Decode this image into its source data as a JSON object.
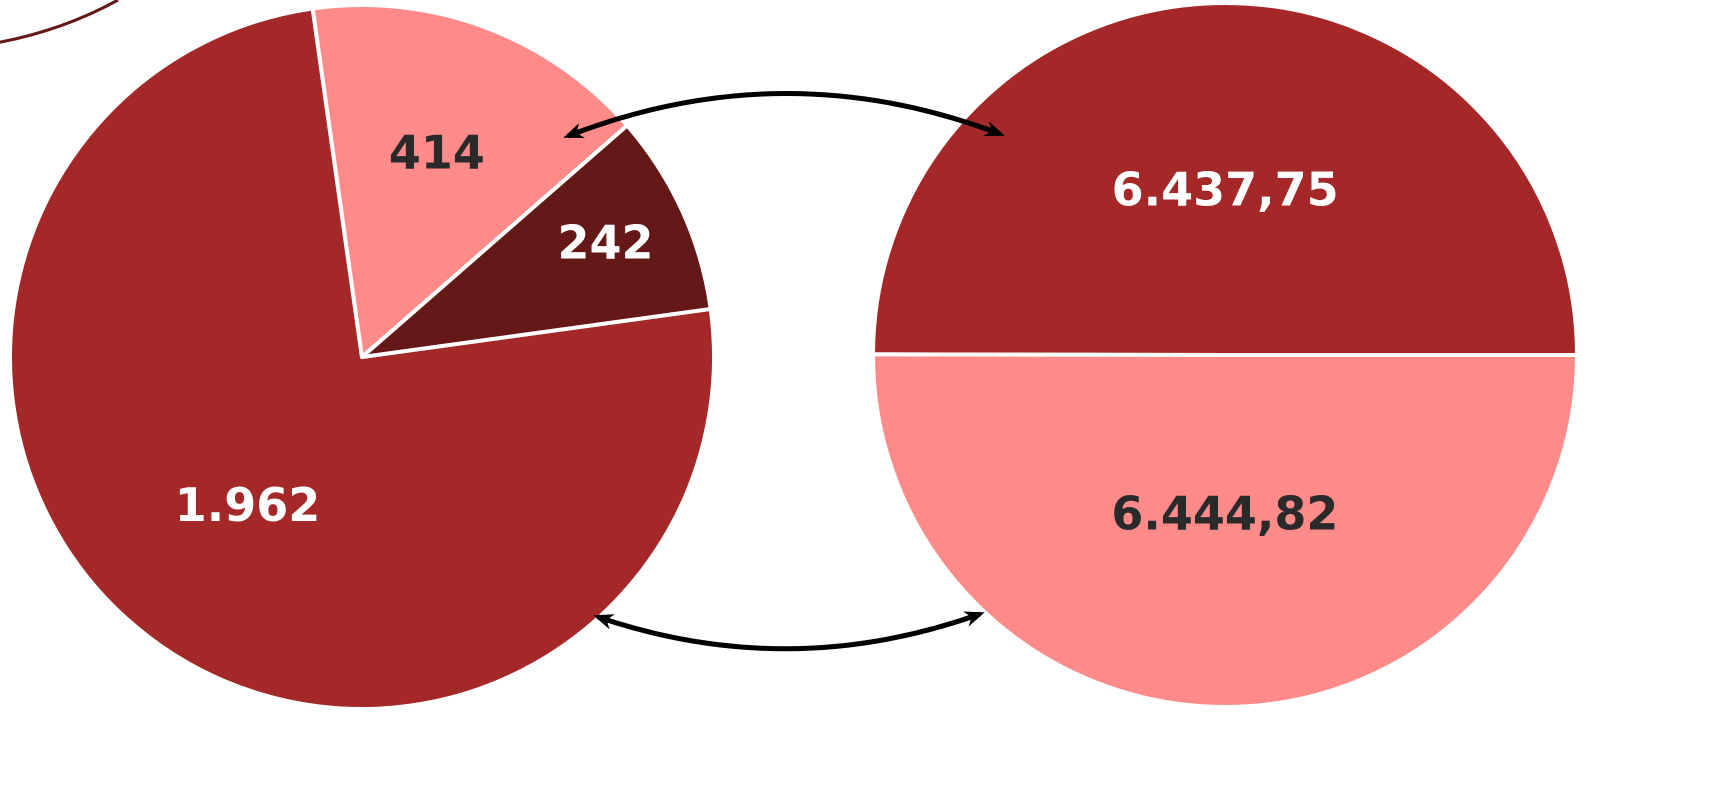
{
  "chart_data": [
    {
      "type": "pie",
      "title": "",
      "slices": [
        {
          "label": "1.962",
          "value": 1962,
          "color": "#a52828"
        },
        {
          "label": "414",
          "value": 414,
          "color": "#ff8a8a"
        },
        {
          "label": "242",
          "value": 242,
          "color": "#641818"
        }
      ],
      "label_colors": [
        "#ffffff",
        "#2a2a2a",
        "#ffffff"
      ]
    },
    {
      "type": "pie",
      "title": "",
      "slices": [
        {
          "label": "6.437,75",
          "value": 6437.75,
          "color": "#a52828"
        },
        {
          "label": "6.444,82",
          "value": 6444.82,
          "color": "#ff8a8a"
        }
      ],
      "label_colors": [
        "#ffffff",
        "#2a2a2a"
      ]
    }
  ],
  "connectors": {
    "count": 2,
    "style": "double-headed-arrow",
    "color": "#000000"
  },
  "colors": {
    "separator": "#ffffff",
    "partial_arc": "#641818"
  }
}
